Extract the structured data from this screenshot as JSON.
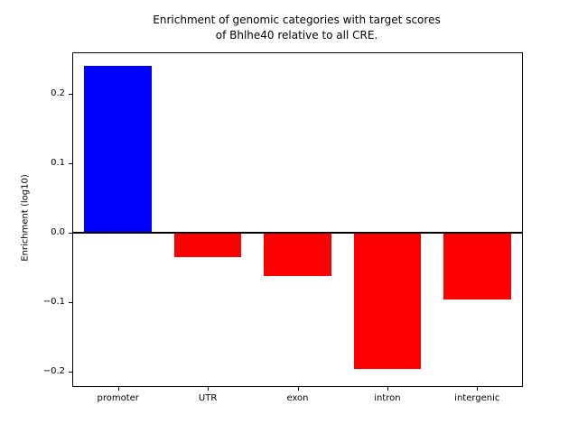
{
  "chart_data": {
    "type": "bar",
    "title": "Enrichment of genomic categories with target scores\nof Bhlhe40 relative to all CRE.",
    "xlabel": "",
    "ylabel": "Enrichment (log10)",
    "categories": [
      "promoter",
      "UTR",
      "exon",
      "intron",
      "intergenic"
    ],
    "values": [
      0.24,
      -0.036,
      -0.062,
      -0.196,
      -0.096
    ],
    "bar_colors": [
      "#0000ff",
      "#ff0000",
      "#ff0000",
      "#ff0000",
      "#ff0000"
    ],
    "bar_color_positive": "#0000ff",
    "bar_color_negative": "#ff0000",
    "ylim": [
      -0.221,
      0.258
    ],
    "yticks": [
      -0.2,
      -0.1,
      0.0,
      0.1,
      0.2
    ],
    "ytick_labels": [
      "−0.2",
      "−0.1",
      "0.0",
      "0.1",
      "0.2"
    ],
    "grid": false,
    "legend": false,
    "zero_line_color": "#000000"
  }
}
